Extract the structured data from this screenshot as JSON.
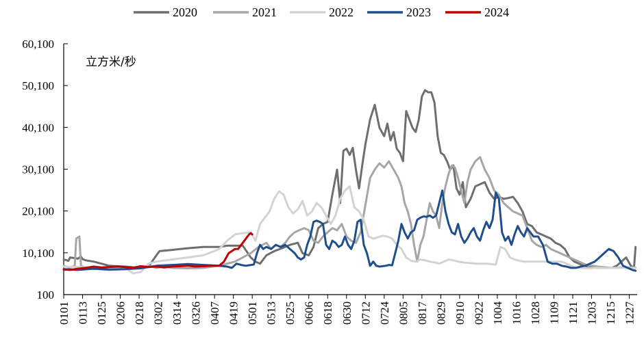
{
  "chart_data": {
    "type": "line",
    "ylabel": "立方米/秒",
    "ylim": [
      100,
      60100
    ],
    "yticks": [
      "100",
      "10,100",
      "20,100",
      "30,100",
      "40,100",
      "50,100",
      "60,100"
    ],
    "ytick_values": [
      100,
      10100,
      20100,
      30100,
      40100,
      50100,
      60100
    ],
    "xticks": [
      "0101",
      "0113",
      "0125",
      "0206",
      "0218",
      "0302",
      "0314",
      "0326",
      "0407",
      "0419",
      "0501",
      "0513",
      "0525",
      "0606",
      "0618",
      "0630",
      "0712",
      "0724",
      "0805",
      "0817",
      "0829",
      "0910",
      "0922",
      "1004",
      "1016",
      "1028",
      "1109",
      "1121",
      "1203",
      "1215",
      "1227"
    ],
    "xtick_days": [
      1,
      13,
      25,
      37,
      49,
      61,
      73,
      85,
      97,
      109,
      121,
      133,
      145,
      157,
      169,
      181,
      193,
      205,
      217,
      229,
      241,
      253,
      265,
      277,
      289,
      301,
      313,
      325,
      337,
      349,
      361
    ],
    "legend_position": "top",
    "grid": false,
    "series": [
      {
        "name": "2020",
        "color": "#6e6e6e",
        "x": [
          1,
          4,
          5,
          10,
          12,
          13,
          15,
          20,
          25,
          30,
          40,
          50,
          55,
          60,
          62,
          70,
          80,
          90,
          100,
          105,
          110,
          115,
          120,
          123,
          126,
          130,
          135,
          140,
          145,
          150,
          153,
          157,
          160,
          163,
          166,
          169,
          172,
          175,
          177,
          179,
          181,
          183,
          185,
          187,
          189,
          191,
          193,
          196,
          199,
          202,
          205,
          207,
          209,
          211,
          213,
          215,
          217,
          219,
          221,
          223,
          225,
          227,
          229,
          231,
          233,
          235,
          237,
          239,
          241,
          243,
          245,
          247,
          249,
          251,
          253,
          255,
          257,
          260,
          263,
          266,
          269,
          272,
          275,
          278,
          281,
          284,
          287,
          290,
          293,
          296,
          299,
          302,
          305,
          308,
          311,
          314,
          317,
          320,
          323,
          326,
          329,
          332,
          335,
          338,
          341,
          344,
          347,
          350,
          353,
          356,
          359,
          362,
          364,
          365
        ],
        "y": [
          8500,
          8200,
          9000,
          8700,
          9200,
          8600,
          8300,
          8000,
          7500,
          7000,
          6800,
          6500,
          6800,
          9500,
          10500,
          10800,
          11200,
          11500,
          11500,
          11800,
          11800,
          11800,
          9000,
          8000,
          7500,
          9500,
          10500,
          11200,
          12000,
          12500,
          10000,
          9500,
          11500,
          16000,
          17000,
          17500,
          24000,
          30000,
          22000,
          34500,
          35000,
          33500,
          35200,
          30000,
          25500,
          31000,
          36000,
          42000,
          45500,
          40000,
          38000,
          41000,
          37000,
          39000,
          35000,
          34000,
          32000,
          44000,
          42000,
          40000,
          39000,
          42000,
          47500,
          49000,
          48500,
          48500,
          46000,
          38000,
          34000,
          33500,
          32000,
          30000,
          31000,
          25500,
          24000,
          27000,
          21000,
          23000,
          26000,
          26500,
          27000,
          24500,
          23000,
          23500,
          23000,
          23200,
          23500,
          22000,
          20000,
          17000,
          16500,
          15000,
          14500,
          14000,
          13500,
          12500,
          12000,
          11000,
          9000,
          8000,
          7500,
          7000,
          6800,
          6600,
          6500,
          6500,
          6500,
          6500,
          7000,
          8000,
          9000,
          7000,
          6500,
          11500
        ]
      },
      {
        "name": "2021",
        "color": "#a6a6a6",
        "x": [
          1,
          5,
          8,
          9,
          11,
          12,
          15,
          20,
          30,
          40,
          50,
          55,
          60,
          65,
          70,
          80,
          90,
          100,
          110,
          115,
          120,
          125,
          130,
          133,
          136,
          139,
          142,
          145,
          148,
          151,
          154,
          157,
          160,
          163,
          166,
          169,
          172,
          175,
          178,
          181,
          184,
          187,
          190,
          193,
          196,
          199,
          202,
          205,
          208,
          211,
          214,
          216,
          218,
          220,
          222,
          224,
          226,
          228,
          230,
          232,
          234,
          236,
          238,
          240,
          242,
          244,
          246,
          248,
          250,
          252,
          254,
          256,
          258,
          260,
          263,
          266,
          269,
          272,
          275,
          278,
          281,
          284,
          287,
          290,
          293,
          296,
          299,
          302,
          305,
          308,
          311,
          314,
          317,
          320,
          323,
          326,
          329,
          332,
          335,
          338,
          341,
          344,
          347,
          350,
          353,
          356,
          359,
          362,
          365
        ],
        "y": [
          7000,
          6500,
          7000,
          13500,
          14000,
          7000,
          6500,
          6300,
          6000,
          6200,
          6500,
          7000,
          6500,
          6800,
          6500,
          6400,
          6500,
          7000,
          8000,
          9000,
          10000,
          11500,
          12500,
          11000,
          12000,
          11500,
          12500,
          14000,
          15000,
          15500,
          16000,
          15500,
          13000,
          12500,
          14000,
          15000,
          16000,
          15500,
          17000,
          14000,
          13000,
          12500,
          15000,
          21500,
          28000,
          30000,
          31500,
          30500,
          32000,
          30000,
          28000,
          26000,
          22000,
          20000,
          17000,
          12000,
          8000,
          12000,
          14000,
          18000,
          22000,
          20000,
          19000,
          16000,
          22000,
          26000,
          29000,
          31000,
          30500,
          28000,
          25000,
          22000,
          27000,
          30000,
          32000,
          33000,
          30000,
          28000,
          25000,
          24000,
          22000,
          21000,
          20000,
          19500,
          19000,
          16000,
          13000,
          12000,
          11500,
          12000,
          11000,
          10500,
          10000,
          9500,
          9000,
          8500,
          8000,
          7500,
          7000,
          7000,
          6800,
          6700,
          6600,
          6500,
          6500,
          6600,
          6600,
          6600,
          6600
        ]
      },
      {
        "name": "2022",
        "color": "#d3d3d3",
        "x": [
          1,
          10,
          20,
          30,
          40,
          45,
          50,
          55,
          60,
          70,
          80,
          90,
          100,
          105,
          110,
          115,
          120,
          123,
          126,
          129,
          132,
          135,
          138,
          141,
          144,
          147,
          150,
          153,
          156,
          159,
          162,
          165,
          168,
          171,
          174,
          177,
          180,
          183,
          186,
          189,
          192,
          195,
          198,
          201,
          204,
          207,
          210,
          213,
          216,
          219,
          222,
          225,
          228,
          231,
          234,
          237,
          240,
          243,
          246,
          249,
          252,
          255,
          258,
          261,
          264,
          267,
          270,
          273,
          276,
          279,
          282,
          285,
          288,
          291,
          294,
          297,
          300,
          303,
          306,
          309,
          312,
          315,
          318,
          321,
          324,
          327,
          330,
          333,
          336,
          339,
          342,
          345,
          348,
          351,
          354,
          357,
          360,
          363,
          365
        ],
        "y": [
          6800,
          6700,
          6600,
          6500,
          6500,
          5200,
          5500,
          7500,
          8000,
          8500,
          9000,
          9500,
          11000,
          13000,
          14500,
          14800,
          15000,
          13000,
          17000,
          18500,
          20000,
          23000,
          24800,
          24000,
          21000,
          19500,
          20500,
          22500,
          19000,
          20000,
          22000,
          21000,
          19000,
          17000,
          19000,
          23000,
          25000,
          26000,
          21000,
          20000,
          18000,
          14000,
          13500,
          13800,
          14200,
          14000,
          13500,
          12000,
          11000,
          9000,
          8200,
          8000,
          8500,
          8300,
          8000,
          7800,
          7500,
          8000,
          8500,
          8300,
          8000,
          7800,
          7700,
          7600,
          7500,
          7500,
          7500,
          7400,
          7300,
          11500,
          11000,
          9000,
          8500,
          8200,
          8000,
          8000,
          8000,
          8000,
          8000,
          8000,
          8000,
          8000,
          8000,
          7500,
          7000,
          6600,
          6500,
          6400,
          6400,
          6500,
          6500,
          6500,
          6500,
          6500,
          6500,
          6500,
          6500,
          6500,
          6500
        ]
      },
      {
        "name": "2023",
        "color": "#1f4e8c",
        "x": [
          1,
          10,
          20,
          30,
          40,
          50,
          60,
          70,
          80,
          90,
          100,
          105,
          108,
          111,
          114,
          117,
          120,
          122,
          124,
          126,
          128,
          130,
          133,
          136,
          139,
          142,
          145,
          148,
          150,
          152,
          154,
          156,
          158,
          160,
          162,
          164,
          166,
          168,
          170,
          172,
          174,
          176,
          178,
          180,
          182,
          184,
          186,
          188,
          190,
          192,
          194,
          196,
          198,
          200,
          202,
          204,
          206,
          208,
          210,
          212,
          214,
          216,
          218,
          220,
          222,
          224,
          226,
          228,
          230,
          232,
          234,
          236,
          238,
          240,
          242,
          244,
          246,
          248,
          250,
          252,
          254,
          256,
          258,
          260,
          262,
          264,
          266,
          268,
          270,
          272,
          274,
          276,
          278,
          280,
          282,
          284,
          286,
          288,
          290,
          292,
          294,
          296,
          298,
          300,
          303,
          306,
          309,
          312,
          315,
          318,
          321,
          324,
          327,
          330,
          333,
          336,
          339,
          342,
          345,
          348,
          351,
          354,
          357,
          360,
          363,
          365
        ],
        "y": [
          6200,
          6000,
          6300,
          6100,
          6200,
          6400,
          7000,
          7200,
          7400,
          7200,
          7000,
          6800,
          6500,
          7500,
          7200,
          7000,
          7200,
          7300,
          10000,
          12000,
          11000,
          11500,
          11000,
          12000,
          11500,
          12000,
          11000,
          10000,
          9000,
          8500,
          9000,
          12000,
          14000,
          17500,
          17800,
          17500,
          17000,
          12000,
          11000,
          13000,
          12500,
          11500,
          12000,
          14000,
          12000,
          11000,
          13000,
          17500,
          18000,
          12000,
          10000,
          7000,
          8000,
          7000,
          6800,
          6900,
          7000,
          7200,
          7100,
          10000,
          13000,
          17000,
          15000,
          13500,
          15000,
          15500,
          18000,
          18500,
          18800,
          18700,
          19000,
          18500,
          19000,
          22000,
          25000,
          20000,
          17000,
          15000,
          14500,
          17000,
          14000,
          12500,
          13500,
          15000,
          16000,
          14000,
          13000,
          15500,
          17500,
          16000,
          18000,
          24500,
          23000,
          15000,
          13000,
          14000,
          12000,
          14500,
          16500,
          15000,
          14000,
          16000,
          15000,
          14000,
          14000,
          12000,
          8000,
          7500,
          7500,
          7000,
          6800,
          6500,
          6500,
          6800,
          7000,
          7500,
          8000,
          9000,
          10000,
          11000,
          10500,
          9000,
          7000,
          6500,
          6000,
          5800
        ]
      },
      {
        "name": "2024",
        "color": "#c00000",
        "x": [
          1,
          5,
          10,
          15,
          20,
          25,
          30,
          35,
          40,
          45,
          50,
          55,
          60,
          65,
          70,
          75,
          80,
          85,
          90,
          95,
          100,
          103,
          106,
          108,
          110,
          112,
          115,
          117,
          119,
          120,
          121
        ],
        "y": [
          6100,
          6000,
          6300,
          6500,
          6800,
          6600,
          6700,
          6800,
          6700,
          6500,
          6900,
          6700,
          6800,
          6600,
          6800,
          6900,
          7000,
          6800,
          6900,
          7000,
          7000,
          8000,
          10000,
          10500,
          11000,
          11000,
          12500,
          13500,
          14500,
          14800,
          14500
        ]
      }
    ]
  }
}
